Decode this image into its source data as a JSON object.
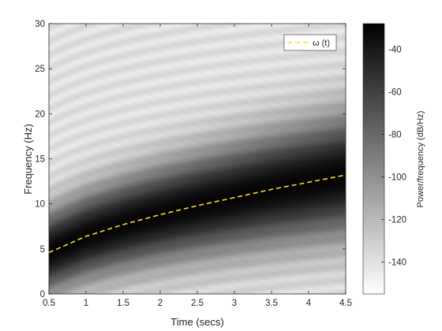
{
  "chart_data": {
    "type": "heatmap",
    "xlabel": "Time (secs)",
    "ylabel": "Frequency (Hz)",
    "xlim": [
      0.5,
      4.5
    ],
    "ylim": [
      0,
      30
    ],
    "xticks": [
      "0.5",
      "1",
      "1.5",
      "2",
      "2.5",
      "3",
      "3.5",
      "4",
      "4.5"
    ],
    "yticks": [
      "0",
      "5",
      "10",
      "15",
      "20",
      "25",
      "30"
    ],
    "colormap": "gray-reversed",
    "colorbar": {
      "label": "Power/frequency (dB/Hz)",
      "range": [
        -155,
        -28
      ],
      "ticks": [
        "-40",
        "-60",
        "-80",
        "-100",
        "-120",
        "-140"
      ]
    },
    "heatmap_description_values": {
      "ridge_frequency_hz": [
        {
          "t": 0.5,
          "f": 4.6
        },
        {
          "t": 1.0,
          "f": 6.4
        },
        {
          "t": 1.5,
          "f": 7.7
        },
        {
          "t": 2.0,
          "f": 8.8
        },
        {
          "t": 2.5,
          "f": 9.8
        },
        {
          "t": 3.0,
          "f": 10.7
        },
        {
          "t": 3.5,
          "f": 11.6
        },
        {
          "t": 4.0,
          "f": 12.4
        },
        {
          "t": 4.5,
          "f": 13.2
        }
      ],
      "peak_power_db": -30,
      "background_power_db": -140
    },
    "series": [
      {
        "name": "ω (t)",
        "style": "dashed",
        "color": "#f5e61e",
        "x": [
          0.5,
          1.0,
          1.5,
          2.0,
          2.5,
          3.0,
          3.5,
          4.0,
          4.5
        ],
        "y": [
          4.6,
          6.4,
          7.7,
          8.8,
          9.8,
          10.7,
          11.6,
          12.4,
          13.2
        ]
      }
    ],
    "legend": "top-right"
  }
}
